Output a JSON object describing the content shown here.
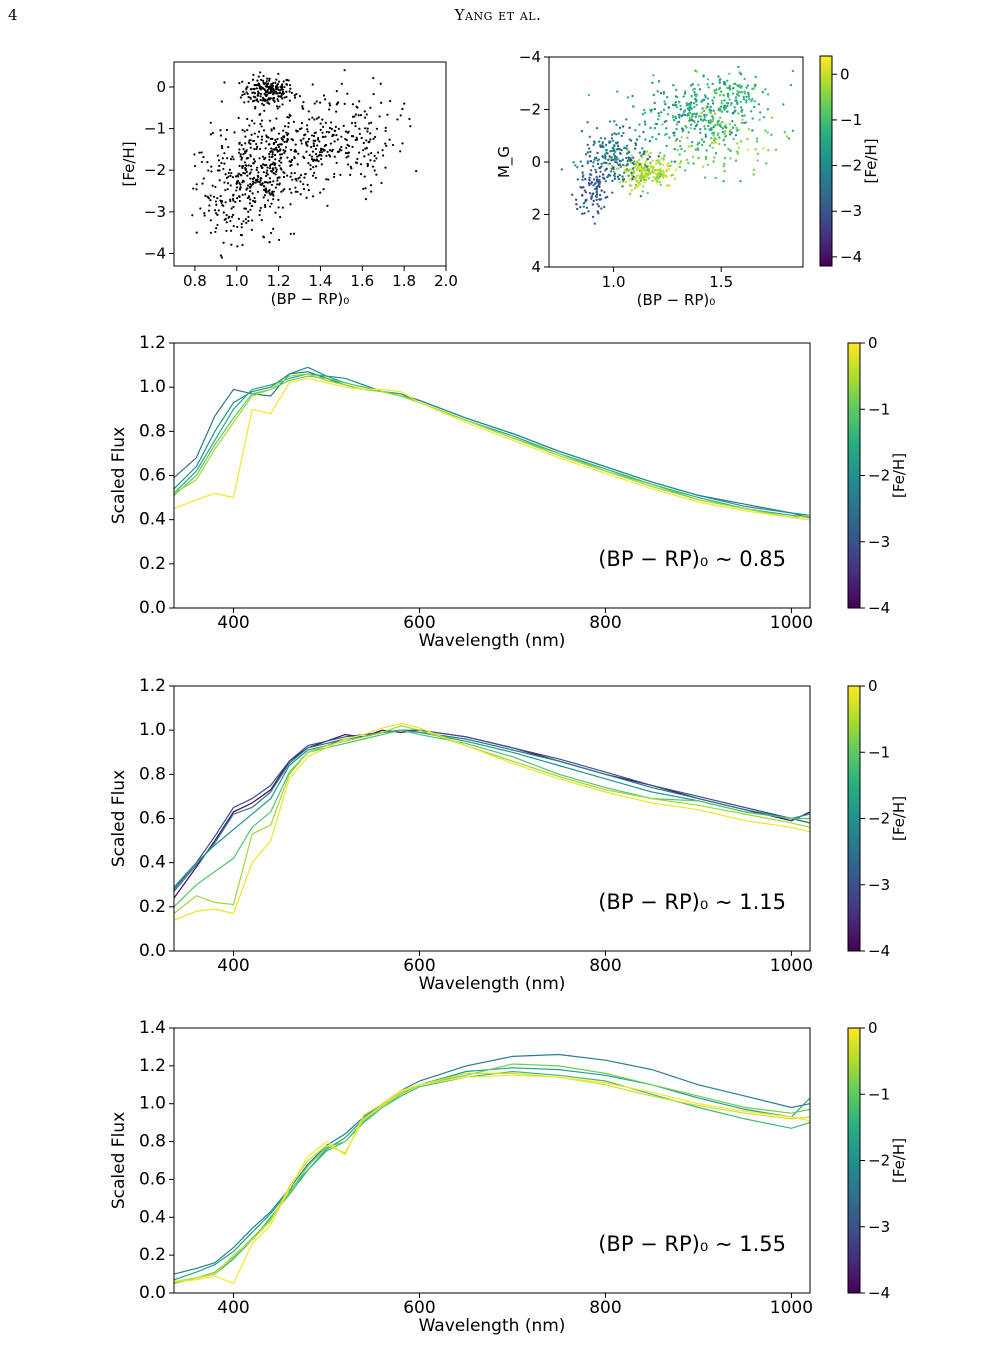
{
  "page": {
    "number": "4",
    "running_head": "Yang et al."
  },
  "chart_data": [
    {
      "id": "feh_vs_color",
      "type": "scatter",
      "xlabel": "(BP − RP)₀",
      "ylabel": "[Fe/H]",
      "xlim": [
        0.7,
        2.0
      ],
      "ylim": [
        -4.3,
        0.6
      ],
      "xticks": [
        0.8,
        1.0,
        1.2,
        1.4,
        1.6,
        1.8,
        2.0
      ],
      "yticks": [
        0,
        -1,
        -2,
        -3,
        -4
      ],
      "marker_color": "#000000",
      "approx_points": 1000,
      "clusters": [
        {
          "x": 1.15,
          "y": -0.1,
          "sx": 0.06,
          "sy": 0.18,
          "n": 200
        },
        {
          "x": 1.2,
          "y": -1.55,
          "sx": 0.18,
          "sy": 0.35,
          "n": 290
        },
        {
          "x": 1.1,
          "y": -2.35,
          "sx": 0.14,
          "sy": 0.3,
          "n": 190
        },
        {
          "x": 1.4,
          "y": -1.0,
          "sx": 0.18,
          "sy": 0.6,
          "n": 170
        },
        {
          "x": 1.0,
          "y": -3.1,
          "sx": 0.12,
          "sy": 0.45,
          "n": 100
        },
        {
          "x": 1.6,
          "y": -1.5,
          "sx": 0.12,
          "sy": 0.5,
          "n": 50
        }
      ]
    },
    {
      "id": "cmd",
      "type": "scatter",
      "xlabel": "(BP − RP)₀",
      "ylabel": "M_G",
      "xlim": [
        0.7,
        1.88
      ],
      "ylim": [
        4,
        -4
      ],
      "xticks": [
        1.0,
        1.5
      ],
      "yticks": [
        -4,
        -2,
        0,
        2,
        4
      ],
      "colorbar": {
        "label": "[Fe/H]",
        "range": [
          -4.2,
          0.4
        ],
        "ticks": [
          0,
          -1,
          -2,
          -3,
          -4
        ]
      },
      "approx_points": 1000,
      "clusters": [
        {
          "x": 1.15,
          "y": 0.4,
          "sx": 0.06,
          "sy": 0.3,
          "feh": -0.2,
          "n": 220
        },
        {
          "x": 1.35,
          "y": -1.8,
          "sx": 0.14,
          "sy": 0.5,
          "feh": -1.5,
          "n": 240
        },
        {
          "x": 1.55,
          "y": -2.6,
          "sx": 0.1,
          "sy": 0.4,
          "feh": -1.2,
          "n": 120
        },
        {
          "x": 1.0,
          "y": -0.2,
          "sx": 0.08,
          "sy": 0.55,
          "feh": -2.4,
          "n": 200
        },
        {
          "x": 0.9,
          "y": 1.1,
          "sx": 0.04,
          "sy": 0.5,
          "feh": -3.0,
          "n": 90
        },
        {
          "x": 1.5,
          "y": -0.7,
          "sx": 0.14,
          "sy": 0.6,
          "feh": -0.7,
          "n": 130
        }
      ]
    },
    {
      "id": "spectra_085",
      "type": "line",
      "xlabel": "Wavelength (nm)",
      "ylabel": "Scaled Flux",
      "xlim": [
        336,
        1020
      ],
      "ylim": [
        0,
        1.2
      ],
      "xticks": [
        400,
        600,
        800,
        1000
      ],
      "yticks": [
        0.0,
        0.2,
        0.4,
        0.6,
        0.8,
        1.0,
        1.2
      ],
      "annotation": "(BP − RP)₀ ∼ 0.85",
      "colorbar": {
        "label": "[Fe/H]",
        "range": [
          -4,
          0
        ],
        "ticks": [
          0,
          -1,
          -2,
          -3,
          -4
        ]
      },
      "x": [
        336,
        360,
        380,
        400,
        420,
        440,
        460,
        480,
        500,
        520,
        540,
        560,
        580,
        600,
        650,
        700,
        750,
        800,
        850,
        900,
        950,
        1000,
        1020
      ],
      "series": [
        {
          "feh": -2.5,
          "values": [
            0.59,
            0.68,
            0.87,
            0.99,
            0.97,
            0.96,
            1.06,
            1.07,
            1.04,
            1.01,
            0.99,
            0.98,
            0.97,
            0.94,
            0.86,
            0.79,
            0.71,
            0.64,
            0.57,
            0.51,
            0.47,
            0.43,
            0.41
          ]
        },
        {
          "feh": -2.0,
          "values": [
            0.54,
            0.64,
            0.8,
            0.93,
            0.98,
            1.0,
            1.06,
            1.09,
            1.05,
            1.04,
            1.01,
            0.98,
            0.96,
            0.94,
            0.86,
            0.79,
            0.71,
            0.64,
            0.57,
            0.51,
            0.46,
            0.43,
            0.42
          ]
        },
        {
          "feh": -1.5,
          "values": [
            0.52,
            0.62,
            0.76,
            0.9,
            0.99,
            1.01,
            1.04,
            1.06,
            1.05,
            1.02,
            1.0,
            0.98,
            0.97,
            0.93,
            0.85,
            0.78,
            0.7,
            0.63,
            0.56,
            0.5,
            0.45,
            0.42,
            0.41
          ]
        },
        {
          "feh": -1.0,
          "values": [
            0.51,
            0.6,
            0.74,
            0.86,
            0.97,
            0.99,
            1.03,
            1.05,
            1.04,
            1.02,
            1.0,
            0.98,
            0.96,
            0.93,
            0.85,
            0.77,
            0.7,
            0.62,
            0.56,
            0.49,
            0.45,
            0.41,
            0.4
          ]
        },
        {
          "feh": -0.6,
          "values": [
            0.52,
            0.58,
            0.72,
            0.84,
            0.96,
            0.99,
            1.05,
            1.06,
            1.03,
            1.01,
            0.99,
            0.98,
            0.96,
            0.93,
            0.85,
            0.77,
            0.69,
            0.62,
            0.55,
            0.49,
            0.45,
            0.41,
            0.42
          ]
        },
        {
          "feh": -0.05,
          "values": [
            0.45,
            0.49,
            0.52,
            0.5,
            0.9,
            0.88,
            1.02,
            1.04,
            1.02,
            1.0,
            0.99,
            0.99,
            0.98,
            0.93,
            0.84,
            0.76,
            0.68,
            0.61,
            0.54,
            0.48,
            0.44,
            0.41,
            0.4
          ]
        }
      ]
    },
    {
      "id": "spectra_115",
      "type": "line",
      "xlabel": "Wavelength (nm)",
      "ylabel": "Scaled Flux",
      "xlim": [
        336,
        1020
      ],
      "ylim": [
        0,
        1.2
      ],
      "xticks": [
        400,
        600,
        800,
        1000
      ],
      "yticks": [
        0.0,
        0.2,
        0.4,
        0.6,
        0.8,
        1.0,
        1.2
      ],
      "annotation": "(BP − RP)₀ ∼ 1.15",
      "colorbar": {
        "label": "[Fe/H]",
        "range": [
          -4,
          0
        ],
        "ticks": [
          0,
          -1,
          -2,
          -3,
          -4
        ]
      },
      "x": [
        336,
        360,
        380,
        400,
        420,
        440,
        460,
        480,
        500,
        520,
        540,
        560,
        580,
        600,
        650,
        700,
        750,
        800,
        850,
        900,
        950,
        1000,
        1020
      ],
      "series": [
        {
          "feh": -3.9,
          "values": [
            0.24,
            0.38,
            0.5,
            0.63,
            0.67,
            0.73,
            0.86,
            0.92,
            0.95,
            0.98,
            0.97,
            1.0,
            0.99,
            1.0,
            0.97,
            0.92,
            0.86,
            0.8,
            0.75,
            0.69,
            0.64,
            0.59,
            0.63
          ]
        },
        {
          "feh": -3.0,
          "values": [
            0.28,
            0.4,
            0.52,
            0.65,
            0.69,
            0.75,
            0.86,
            0.93,
            0.95,
            0.97,
            0.98,
            0.99,
            1.0,
            1.0,
            0.97,
            0.92,
            0.87,
            0.81,
            0.75,
            0.7,
            0.65,
            0.6,
            0.58
          ]
        },
        {
          "feh": -2.4,
          "values": [
            0.27,
            0.39,
            0.49,
            0.62,
            0.65,
            0.72,
            0.85,
            0.92,
            0.94,
            0.96,
            0.97,
            0.99,
            1.0,
            0.99,
            0.96,
            0.91,
            0.86,
            0.8,
            0.74,
            0.69,
            0.64,
            0.6,
            0.58
          ]
        },
        {
          "feh": -1.9,
          "values": [
            0.29,
            0.4,
            0.48,
            0.55,
            0.62,
            0.69,
            0.84,
            0.91,
            0.93,
            0.96,
            0.97,
            0.99,
            1.0,
            0.99,
            0.95,
            0.9,
            0.84,
            0.78,
            0.72,
            0.68,
            0.63,
            0.6,
            0.62
          ]
        },
        {
          "feh": -1.1,
          "values": [
            0.2,
            0.3,
            0.36,
            0.42,
            0.56,
            0.63,
            0.81,
            0.9,
            0.92,
            0.94,
            0.96,
            0.98,
            1.0,
            0.98,
            0.94,
            0.88,
            0.8,
            0.74,
            0.69,
            0.68,
            0.63,
            0.6,
            0.6
          ]
        },
        {
          "feh": -0.6,
          "values": [
            0.17,
            0.25,
            0.22,
            0.21,
            0.53,
            0.57,
            0.8,
            0.9,
            0.93,
            0.95,
            0.97,
            0.99,
            1.02,
            1.0,
            0.93,
            0.86,
            0.79,
            0.73,
            0.69,
            0.66,
            0.62,
            0.58,
            0.56
          ]
        },
        {
          "feh": -0.1,
          "values": [
            0.14,
            0.18,
            0.19,
            0.17,
            0.4,
            0.5,
            0.78,
            0.88,
            0.92,
            0.96,
            0.98,
            1.01,
            1.03,
            1.01,
            0.93,
            0.85,
            0.78,
            0.72,
            0.67,
            0.64,
            0.59,
            0.56,
            0.54
          ]
        }
      ]
    },
    {
      "id": "spectra_155",
      "type": "line",
      "xlabel": "Wavelength (nm)",
      "ylabel": "Scaled Flux",
      "xlim": [
        336,
        1020
      ],
      "ylim": [
        0,
        1.4
      ],
      "xticks": [
        400,
        600,
        800,
        1000
      ],
      "yticks": [
        0.0,
        0.2,
        0.4,
        0.6,
        0.8,
        1.0,
        1.2,
        1.4
      ],
      "annotation": "(BP − RP)₀ ∼ 1.55",
      "colorbar": {
        "label": "[Fe/H]",
        "range": [
          -4,
          0
        ],
        "ticks": [
          0,
          -1,
          -2,
          -3,
          -4
        ]
      },
      "x": [
        336,
        360,
        380,
        400,
        420,
        440,
        460,
        480,
        500,
        520,
        540,
        560,
        580,
        600,
        650,
        700,
        750,
        800,
        850,
        900,
        950,
        1000,
        1020
      ],
      "series": [
        {
          "feh": -2.3,
          "values": [
            0.1,
            0.13,
            0.16,
            0.24,
            0.34,
            0.43,
            0.55,
            0.68,
            0.78,
            0.84,
            0.93,
            1.0,
            1.07,
            1.12,
            1.2,
            1.25,
            1.26,
            1.23,
            1.18,
            1.1,
            1.04,
            0.98,
            1.0
          ]
        },
        {
          "feh": -1.7,
          "values": [
            0.07,
            0.11,
            0.15,
            0.22,
            0.32,
            0.42,
            0.54,
            0.65,
            0.76,
            0.82,
            0.92,
            0.99,
            1.06,
            1.1,
            1.17,
            1.19,
            1.18,
            1.15,
            1.1,
            1.03,
            0.97,
            0.93,
            1.03
          ]
        },
        {
          "feh": -1.3,
          "values": [
            0.06,
            0.08,
            0.1,
            0.18,
            0.28,
            0.4,
            0.52,
            0.65,
            0.75,
            0.8,
            0.9,
            0.98,
            1.04,
            1.09,
            1.14,
            1.17,
            1.15,
            1.12,
            1.05,
            0.98,
            0.92,
            0.87,
            0.9
          ]
        },
        {
          "feh": -0.9,
          "values": [
            0.05,
            0.08,
            0.11,
            0.19,
            0.29,
            0.39,
            0.53,
            0.67,
            0.77,
            0.8,
            0.91,
            0.98,
            1.05,
            1.1,
            1.15,
            1.21,
            1.2,
            1.16,
            1.1,
            1.04,
            0.98,
            0.95,
            0.97
          ]
        },
        {
          "feh": -0.3,
          "values": [
            0.06,
            0.08,
            0.1,
            0.2,
            0.28,
            0.38,
            0.56,
            0.7,
            0.78,
            0.74,
            0.92,
            0.99,
            1.06,
            1.1,
            1.16,
            1.16,
            1.14,
            1.1,
            1.04,
            0.99,
            0.95,
            0.92,
            0.93
          ]
        },
        {
          "feh": -0.05,
          "values": [
            0.06,
            0.07,
            0.09,
            0.05,
            0.26,
            0.36,
            0.55,
            0.72,
            0.8,
            0.73,
            0.94,
            1.0,
            1.07,
            1.1,
            1.14,
            1.15,
            1.14,
            1.11,
            1.06,
            1.0,
            0.96,
            0.93,
            0.91
          ]
        }
      ]
    }
  ]
}
